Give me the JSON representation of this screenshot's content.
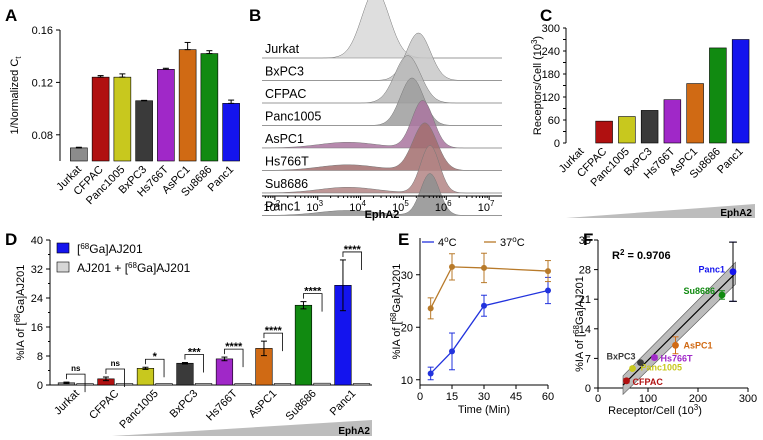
{
  "colors": {
    "Jurkat": "#8c8c8c",
    "CFPAC": "#b01010",
    "Panc1005": "#c8c81e",
    "BxPC3": "#3a3a3a",
    "Hs766T": "#a028c8",
    "AsPC1": "#d06a14",
    "Su8686": "#118a11",
    "Panc1": "#1414ee",
    "gray_bar": "#d6d6d6",
    "c4": "#2233dd",
    "c37": "#b87a2a"
  },
  "chart_data": [
    {
      "panel": "A",
      "type": "bar",
      "title": "",
      "xlabel": "",
      "ylabel": "1/Normalized C",
      "ylabel_sub": "t",
      "categories": [
        "Jurkat",
        "CFPAC",
        "Panc1005",
        "BxPC3",
        "Hs766T",
        "AsPC1",
        "Su8686",
        "Panc1"
      ],
      "values": [
        0.07,
        0.124,
        0.124,
        0.106,
        0.13,
        0.145,
        0.142,
        0.104
      ],
      "errors": [
        0.0005,
        0.0012,
        0.0025,
        0.0003,
        0.0008,
        0.0055,
        0.0022,
        0.0025
      ],
      "ylim": [
        0.06,
        0.16
      ],
      "yticks": [
        "0.08",
        "0.12",
        "0.16"
      ]
    },
    {
      "panel": "B",
      "type": "histogram-ridgeline",
      "xlabel": "EphA2",
      "xticks": [
        "2",
        "3",
        "4",
        "5",
        "6",
        "7"
      ],
      "tick_base": "10",
      "xlim_log10": [
        1.7,
        7.3
      ],
      "series": [
        {
          "name": "Jurkat",
          "peak_log10": 4.35,
          "width": 0.32
        },
        {
          "name": "BxPC3",
          "peak_log10": 5.35,
          "width": 0.28
        },
        {
          "name": "CFPAC",
          "peak_log10": 5.1,
          "width": 0.3
        },
        {
          "name": "Panc1005",
          "peak_log10": 5.2,
          "width": 0.27
        },
        {
          "name": "AsPC1",
          "peak_log10": 5.45,
          "width": 0.25
        },
        {
          "name": "Hs766T",
          "peak_log10": 5.5,
          "width": 0.28
        },
        {
          "name": "Su8686",
          "peak_log10": 5.62,
          "width": 0.22
        },
        {
          "name": "Panc1",
          "peak_log10": 5.62,
          "width": 0.22
        }
      ]
    },
    {
      "panel": "C",
      "type": "bar",
      "ylabel": "Receptors/Cell (10",
      "ylabel_sup": "3",
      "ylabel_end": ")",
      "xnote": "EphA2",
      "categories": [
        "Jurkat",
        "CFPAC",
        "Panc1005",
        "BxPC3",
        "Hs766T",
        "AsPC1",
        "Su8686",
        "Panc1"
      ],
      "values": [
        0,
        57,
        69,
        85,
        113,
        155,
        248,
        270
      ],
      "ylim": [
        0,
        300
      ],
      "yticks": [
        "0",
        "30",
        "60",
        "90",
        "120",
        "150",
        "180",
        "210",
        "240",
        "270",
        "300"
      ]
    },
    {
      "panel": "D",
      "type": "bar",
      "ylabel": "%IA of [",
      "ylabel_sup": "68",
      "ylabel_end": "Ga]AJ201",
      "xnote": "EphA2",
      "categories": [
        "Jurkat",
        "CFPAC",
        "Panc1005",
        "BxPC3",
        "Hs766T",
        "AsPC1",
        "Su8686",
        "Panc1"
      ],
      "series": [
        {
          "name_pre": "[",
          "name_sup": "68",
          "name_post": "Ga]AJ201",
          "values": [
            0.6,
            1.7,
            4.6,
            6.0,
            7.2,
            10.1,
            22.0,
            27.5
          ],
          "errors": [
            0.2,
            0.5,
            0.3,
            0.2,
            0.5,
            2.0,
            1.0,
            7.0
          ]
        },
        {
          "name_pre": "AJ201 + [",
          "name_sup": "68",
          "name_post": "Ga]AJ201",
          "values": [
            0.4,
            0.4,
            0.4,
            0.4,
            0.4,
            0.4,
            0.5,
            0.4
          ],
          "errors": [
            0.1,
            0.1,
            0.1,
            0.1,
            0.1,
            0.1,
            0.2,
            0.1
          ]
        }
      ],
      "significance": [
        "ns",
        "ns",
        "*",
        "***",
        "****",
        "****",
        "****",
        "****"
      ],
      "ylim": [
        0,
        40
      ],
      "yticks": [
        "0",
        "8",
        "16",
        "24",
        "32",
        "40"
      ]
    },
    {
      "panel": "E",
      "type": "line",
      "xlabel": "Time (Min)",
      "ylabel": "%IA of [",
      "ylabel_sup": "68",
      "ylabel_end": "Ga]AJ201",
      "x": [
        5,
        15,
        30,
        60
      ],
      "series": [
        {
          "name": "4",
          "deg": "o",
          "unit": "C",
          "values": [
            11.2,
            15.4,
            24.1,
            27.0
          ],
          "errors": [
            1.2,
            3.5,
            2.0,
            2.5
          ]
        },
        {
          "name": "37",
          "deg": "o",
          "unit": "C",
          "values": [
            23.6,
            31.5,
            31.3,
            30.7
          ],
          "errors": [
            2.0,
            2.5,
            2.8,
            2.0
          ]
        }
      ],
      "xlim": [
        0,
        60
      ],
      "ylim": [
        9,
        37
      ],
      "xticks": [
        "0",
        "15",
        "30",
        "45",
        "60"
      ],
      "yticks": [
        "10",
        "20",
        "30"
      ]
    },
    {
      "panel": "F",
      "type": "scatter",
      "xlabel": "Receptor/Cell (10",
      "xlabel_sup": "3",
      "xlabel_end": ")",
      "ylabel": "%IA of [",
      "ylabel_sup": "68",
      "ylabel_end": "Ga]AJ201",
      "annotation": "R",
      "annotation_sup": "2",
      "annotation_end": " = 0.9706",
      "points": [
        {
          "name": "CFPAC",
          "x": 57,
          "y": 1.7
        },
        {
          "name": "Panc1005",
          "x": 69,
          "y": 4.6
        },
        {
          "name": "BxPC3",
          "x": 85,
          "y": 6.0
        },
        {
          "name": "Hs766T",
          "x": 113,
          "y": 7.2
        },
        {
          "name": "AsPC1",
          "x": 155,
          "y": 10.1
        },
        {
          "name": "Su8686",
          "x": 248,
          "y": 22.0
        },
        {
          "name": "Panc1",
          "x": 270,
          "y": 27.5
        }
      ],
      "y_errors": [
        0.5,
        0.3,
        0.2,
        0.5,
        2.0,
        1.0,
        7.0
      ],
      "fit": {
        "slope": 0.1176,
        "intercept": -5.2
      },
      "xlim": [
        0,
        300
      ],
      "ylim": [
        0,
        35
      ],
      "xticks": [
        "0",
        "100",
        "200",
        "300"
      ],
      "yticks": [
        "0",
        "7",
        "14",
        "21",
        "28",
        "35"
      ]
    }
  ],
  "panels": {
    "A": "A",
    "B": "B",
    "C": "C",
    "D": "D",
    "E": "E",
    "F": "F"
  }
}
